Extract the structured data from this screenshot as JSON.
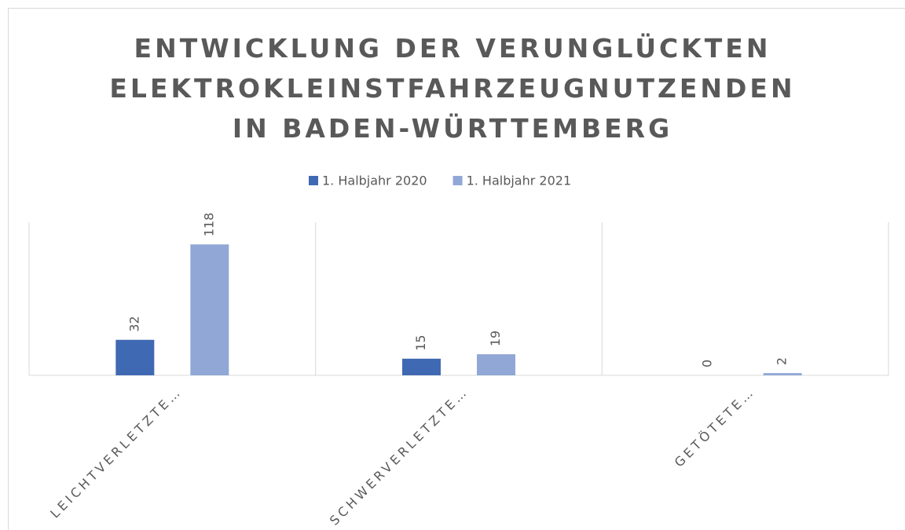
{
  "chart_data": {
    "type": "bar",
    "title": "ENTWICKLUNG DER VERUNGLÜCKTEN ELEKTROKLEINSTFAHRZEUGNUTZENDEN IN BADEN-WÜRTTEMBERG",
    "categories": [
      "LEICHTVERLETZTE…",
      "SCHWERVERLETZTE…",
      "GETÖTETE…"
    ],
    "series": [
      {
        "name": "1. Halbjahr 2020",
        "color": "#4069b3",
        "values": [
          32,
          15,
          0
        ]
      },
      {
        "name": "1. Halbjahr 2021",
        "color": "#91a7d6",
        "values": [
          118,
          19,
          2
        ]
      }
    ],
    "ylim": [
      0,
      138
    ],
    "legend": "top"
  }
}
